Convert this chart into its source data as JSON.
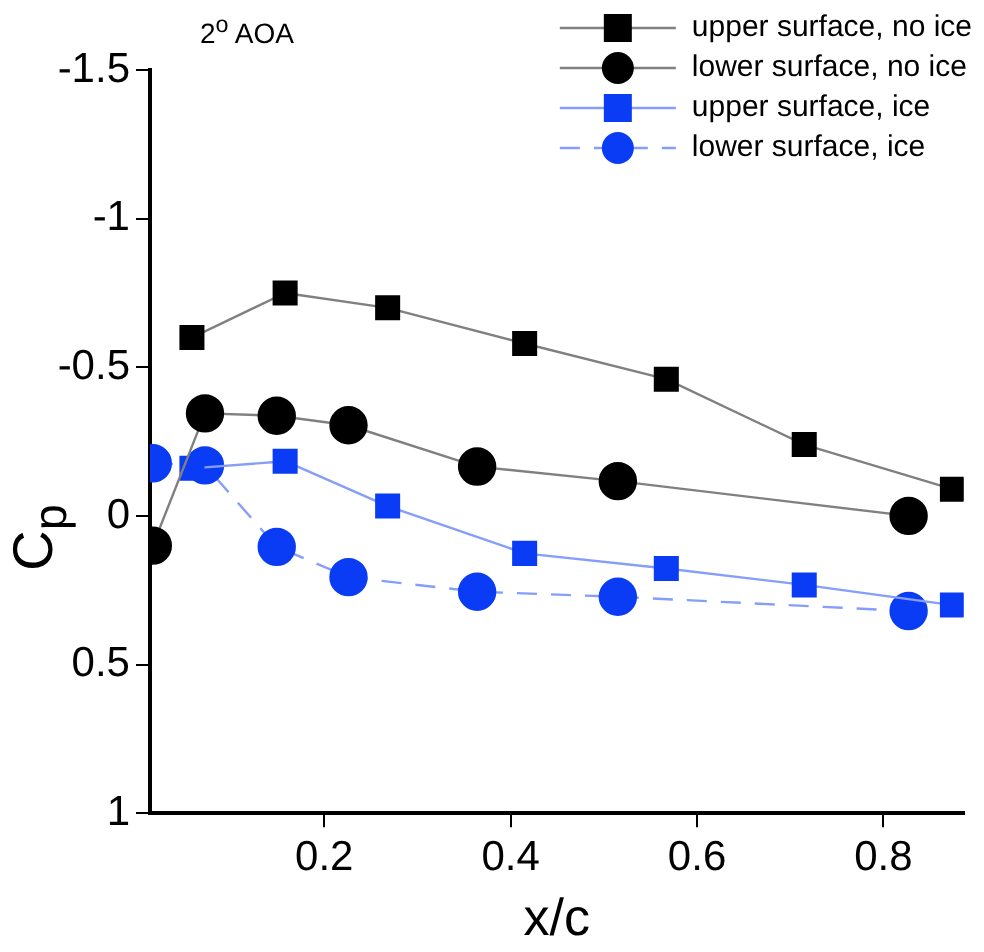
{
  "chart_data": {
    "type": "line",
    "title": "2$^{o}$ AOA",
    "xlabel": "x/c",
    "ylabel": "C$_{p}$",
    "xlim": [
      0.013,
      0.886
    ],
    "xticks": [
      0.2,
      0.4,
      0.6,
      0.8
    ],
    "ylim": [
      1,
      -1.5
    ],
    "yticks": [
      -1.5,
      -1,
      -0.5,
      0,
      0.5,
      1
    ],
    "grid": false,
    "legend": "top right",
    "series": [
      {
        "name": "upper surface, no ice",
        "color": "#000000",
        "marker": "square",
        "line_style": "solid",
        "x": [
          0.058,
          0.158,
          0.268,
          0.415,
          0.567,
          0.715,
          0.874
        ],
        "values": [
          -0.6,
          -0.75,
          -0.7,
          -0.58,
          -0.46,
          -0.24,
          -0.09
        ]
      },
      {
        "name": "lower surface, no ice",
        "color": "#000000",
        "marker": "circle",
        "line_style": "solid",
        "x": [
          0.016,
          0.072,
          0.149,
          0.226,
          0.364,
          0.515,
          0.827
        ],
        "values": [
          0.1,
          -0.345,
          -0.337,
          -0.305,
          -0.166,
          -0.117,
          0.0
        ]
      },
      {
        "name": "upper surface, ice",
        "color": "#0a3cf5",
        "marker": "square",
        "line_style": "solid",
        "x": [
          0.058,
          0.158,
          0.268,
          0.415,
          0.567,
          0.715,
          0.874
        ],
        "values": [
          -0.16,
          -0.184,
          -0.033,
          0.126,
          0.177,
          0.232,
          0.3
        ]
      },
      {
        "name": "lower surface, ice",
        "color": "#0a3cf5",
        "marker": "circle",
        "line_style": "dashed",
        "x": [
          0.016,
          0.072,
          0.149,
          0.226,
          0.364,
          0.515,
          0.827
        ],
        "values": [
          -0.177,
          -0.17,
          0.104,
          0.206,
          0.255,
          0.272,
          0.32
        ]
      }
    ]
  }
}
